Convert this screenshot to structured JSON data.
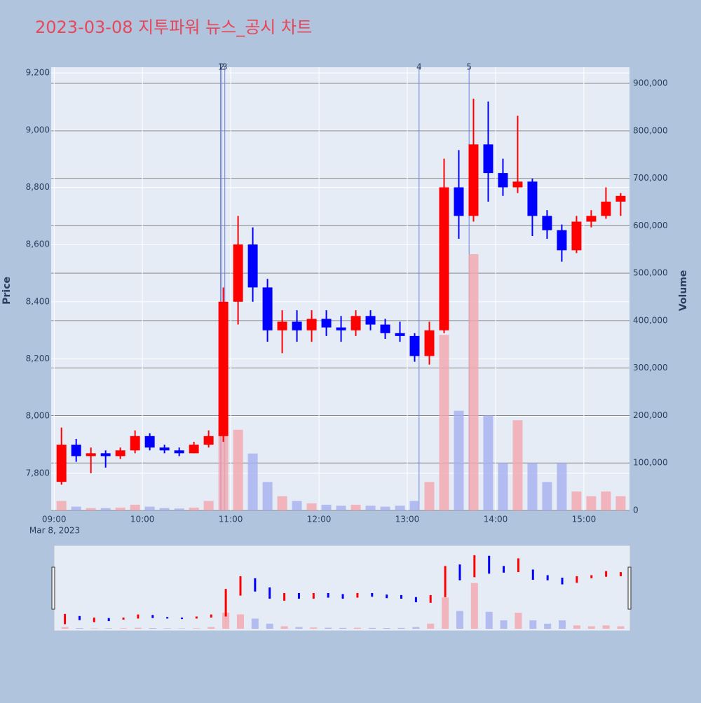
{
  "chart_data": {
    "type": "candlestick",
    "title": "2023-03-08 지투파워 뉴스_공시 차트",
    "y_label": "Price",
    "y2_label": "Volume",
    "x_date_label": "Mar 8, 2023",
    "up_color": "#ff0000",
    "down_color": "#0000ff",
    "volume_up_color": "#f4a6ae",
    "volume_down_color": "#a6b0f0",
    "grid": true,
    "x": [
      "09:00",
      "09:10",
      "09:20",
      "09:30",
      "09:40",
      "09:50",
      "10:00",
      "10:10",
      "10:20",
      "10:30",
      "10:40",
      "10:50",
      "11:00",
      "11:10",
      "11:20",
      "11:30",
      "11:40",
      "11:50",
      "12:00",
      "12:10",
      "12:20",
      "12:30",
      "12:40",
      "12:50",
      "13:00",
      "13:10",
      "13:20",
      "13:30",
      "13:40",
      "13:50",
      "14:00",
      "14:10",
      "14:20",
      "14:30",
      "14:40",
      "14:50",
      "15:00",
      "15:10",
      "15:20"
    ],
    "open": [
      7770,
      7900,
      7860,
      7870,
      7860,
      7880,
      7930,
      7890,
      7880,
      7870,
      7900,
      7930,
      8400,
      8600,
      8450,
      8300,
      8330,
      8300,
      8340,
      8310,
      8300,
      8350,
      8320,
      8290,
      8280,
      8210,
      8300,
      8800,
      8700,
      8950,
      8850,
      8800,
      8820,
      8700,
      8650,
      8580,
      8680,
      8700,
      8750
    ],
    "high": [
      7960,
      7920,
      7890,
      7880,
      7890,
      7950,
      7940,
      7900,
      7890,
      7910,
      7950,
      8450,
      8700,
      8660,
      8480,
      8370,
      8370,
      8370,
      8370,
      8350,
      8370,
      8370,
      8340,
      8330,
      8290,
      8330,
      8900,
      8930,
      9110,
      9100,
      8900,
      9050,
      8830,
      8720,
      8670,
      8700,
      8720,
      8800,
      8780
    ],
    "low": [
      7760,
      7840,
      7800,
      7820,
      7850,
      7870,
      7880,
      7870,
      7860,
      7870,
      7890,
      7910,
      8320,
      8400,
      8260,
      8220,
      8260,
      8260,
      8280,
      8260,
      8280,
      8300,
      8270,
      8260,
      8190,
      8180,
      8290,
      8620,
      8680,
      8750,
      8770,
      8780,
      8630,
      8620,
      8540,
      8570,
      8660,
      8690,
      8700
    ],
    "close": [
      7900,
      7860,
      7870,
      7860,
      7880,
      7930,
      7890,
      7880,
      7870,
      7900,
      7930,
      8400,
      8600,
      8450,
      8300,
      8330,
      8300,
      8340,
      8310,
      8300,
      8350,
      8320,
      8290,
      8280,
      8210,
      8300,
      8800,
      8700,
      8950,
      8850,
      8800,
      8820,
      8700,
      8650,
      8580,
      8680,
      8700,
      8750,
      8770
    ],
    "volume": [
      20000,
      8000,
      5000,
      5000,
      6000,
      12000,
      8000,
      5000,
      4000,
      6000,
      20000,
      190000,
      170000,
      120000,
      60000,
      30000,
      20000,
      15000,
      12000,
      10000,
      12000,
      10000,
      8000,
      10000,
      20000,
      60000,
      370000,
      210000,
      540000,
      200000,
      100000,
      190000,
      100000,
      60000,
      100000,
      40000,
      30000,
      40000,
      30000
    ],
    "xlim": [
      "08:58",
      "15:31"
    ],
    "xticks": [
      "09:00",
      "10:00",
      "11:00",
      "12:00",
      "13:00",
      "14:00",
      "15:00"
    ],
    "ylim": [
      7670,
      9220
    ],
    "yticks": [
      {
        "value": 7800,
        "label": "7,800"
      },
      {
        "value": 8000,
        "label": "8,000"
      },
      {
        "value": 8200,
        "label": "8,200"
      },
      {
        "value": 8400,
        "label": "8,400"
      },
      {
        "value": 8600,
        "label": "8,600"
      },
      {
        "value": 8800,
        "label": "8,800"
      },
      {
        "value": 9000,
        "label": "9,000"
      },
      {
        "value": 9200,
        "label": "9,200"
      }
    ],
    "y2lim": [
      0,
      934000
    ],
    "y2ticks": [
      0,
      {
        "value": 100000,
        "label": "100,000"
      },
      {
        "value": 200000,
        "label": "200,000"
      },
      {
        "value": 300000,
        "label": "300,000"
      },
      {
        "value": 400000,
        "label": "400,000"
      },
      {
        "value": 500000,
        "label": "500,000"
      },
      {
        "value": 600000,
        "label": "600,000"
      },
      {
        "value": 700000,
        "label": "700,000"
      },
      {
        "value": 800000,
        "label": "800,000"
      },
      {
        "value": 900000,
        "label": "900,000"
      }
    ],
    "annotations": [
      {
        "x": "10:53",
        "text": "1"
      },
      {
        "x": "10:54",
        "text": "2"
      },
      {
        "x": "10:56",
        "text": "3"
      },
      {
        "x": "13:08",
        "text": "4"
      },
      {
        "x": "13:42",
        "text": "5"
      }
    ]
  }
}
